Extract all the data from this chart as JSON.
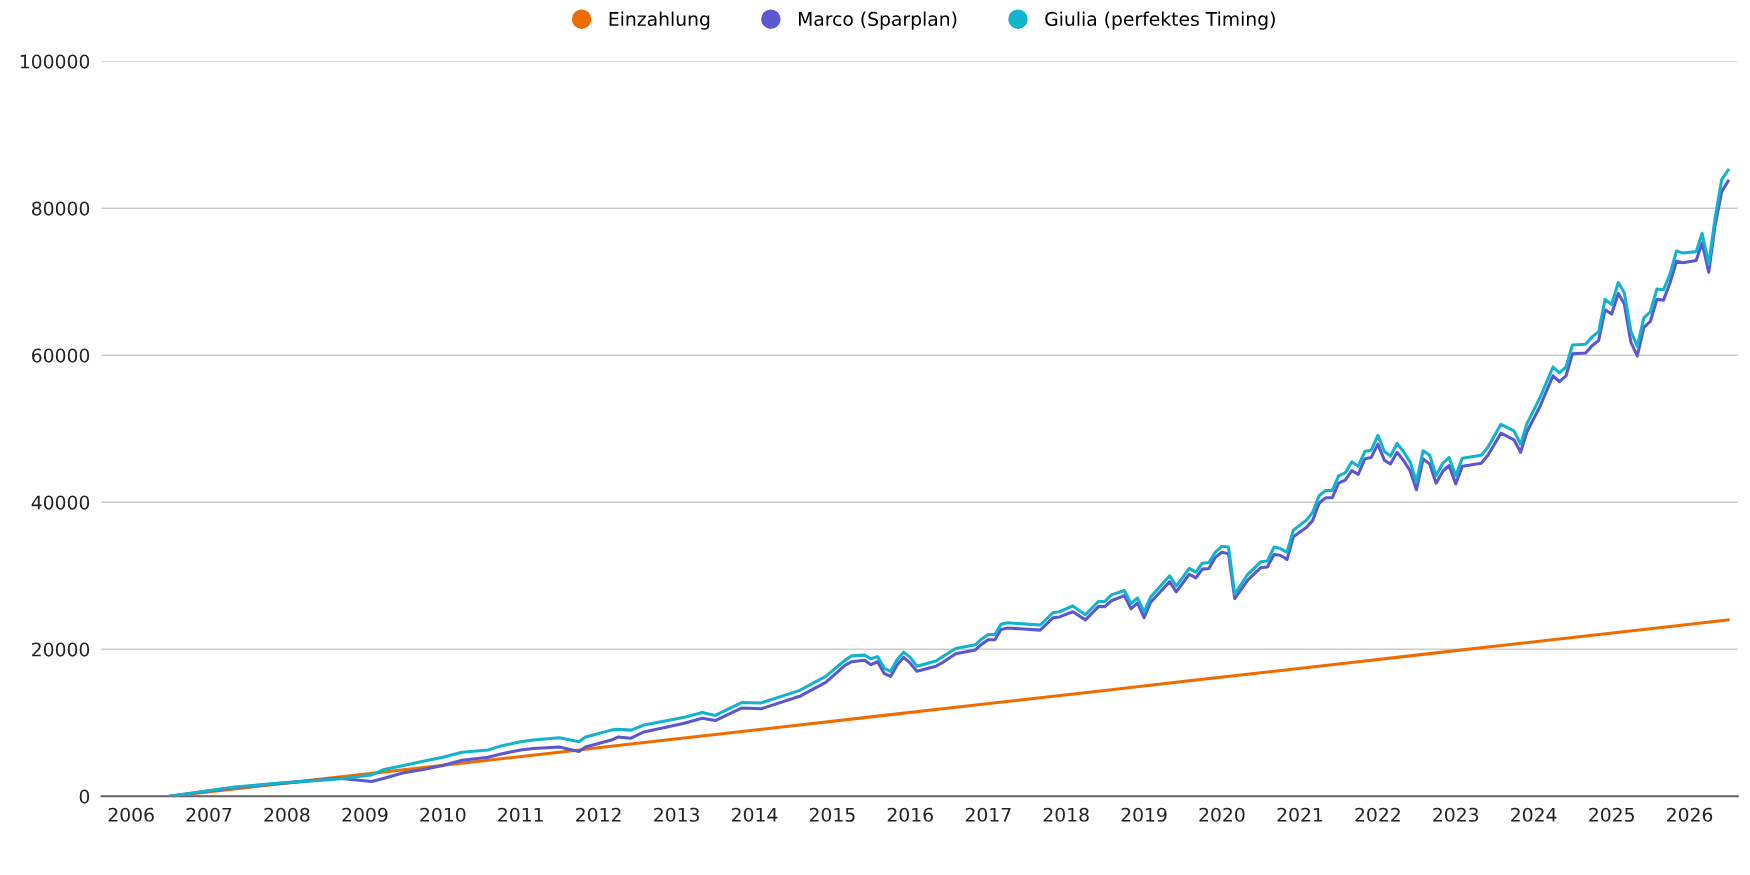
{
  "chart_data": {
    "type": "line",
    "legend": "top",
    "grid": "y",
    "marker": "none",
    "line_style": "solid",
    "xlim": [
      "2005-08-15",
      "2026-08-15"
    ],
    "xticks": [
      {
        "value": "2006-01-01",
        "label": "2006"
      },
      {
        "value": "2007-01-01",
        "label": "2007"
      },
      {
        "value": "2008-01-01",
        "label": "2008"
      },
      {
        "value": "2009-01-01",
        "label": "2009"
      },
      {
        "value": "2010-01-01",
        "label": "2010"
      },
      {
        "value": "2011-01-01",
        "label": "2011"
      },
      {
        "value": "2012-01-01",
        "label": "2012"
      },
      {
        "value": "2013-01-01",
        "label": "2013"
      },
      {
        "value": "2014-01-01",
        "label": "2014"
      },
      {
        "value": "2015-01-01",
        "label": "2015"
      },
      {
        "value": "2016-01-01",
        "label": "2016"
      },
      {
        "value": "2017-01-01",
        "label": "2017"
      },
      {
        "value": "2018-01-01",
        "label": "2018"
      },
      {
        "value": "2019-01-01",
        "label": "2019"
      },
      {
        "value": "2020-01-01",
        "label": "2020"
      },
      {
        "value": "2021-01-01",
        "label": "2021"
      },
      {
        "value": "2022-01-01",
        "label": "2022"
      },
      {
        "value": "2023-01-01",
        "label": "2023"
      },
      {
        "value": "2024-01-01",
        "label": "2024"
      },
      {
        "value": "2025-01-01",
        "label": "2025"
      },
      {
        "value": "2026-01-01",
        "label": "2026"
      }
    ],
    "ylim": [
      0,
      100000
    ],
    "yticks": [
      0,
      20000,
      40000,
      60000,
      80000,
      100000
    ],
    "series": [
      {
        "name": "Einzahlung",
        "color": "#ef6c00",
        "x": [
          "2006-07",
          "2007-07",
          "2008-07",
          "2009-07",
          "2010-07",
          "2011-07",
          "2012-07",
          "2013-07",
          "2014-07",
          "2015-07",
          "2016-07",
          "2017-07",
          "2018-07",
          "2019-07",
          "2020-07",
          "2021-07",
          "2022-07",
          "2023-07",
          "2024-07",
          "2025-07",
          "2026-07"
        ],
        "values": [
          0,
          1200,
          2400,
          3600,
          4800,
          6000,
          7200,
          8400,
          9600,
          10800,
          12000,
          13200,
          14400,
          15600,
          16800,
          18000,
          19200,
          20400,
          21600,
          22800,
          24000
        ]
      },
      {
        "name": "Marco (Sparplan)",
        "color": "#5b57d1",
        "x": [
          "2006-07",
          "2007-05",
          "2007-12",
          "2008-09",
          "2009-02",
          "2009-04",
          "2009-07",
          "2009-10",
          "2010-01",
          "2010-04",
          "2010-08",
          "2010-10",
          "2011-01",
          "2011-03",
          "2011-07",
          "2011-10",
          "2011-11",
          "2012-03",
          "2012-04",
          "2012-06",
          "2012-08",
          "2013-02",
          "2013-05",
          "2013-07",
          "2013-11",
          "2014-02",
          "2014-08",
          "2014-12",
          "2015-03",
          "2015-04",
          "2015-06",
          "2015-07",
          "2015-08",
          "2015-09",
          "2015-10",
          "2015-11",
          "2015-12",
          "2016-01",
          "2016-02",
          "2016-05",
          "2016-06",
          "2016-08",
          "2016-11",
          "2016-12",
          "2017-01",
          "2017-02",
          "2017-03",
          "2017-04",
          "2017-09",
          "2017-11",
          "2017-12",
          "2018-02",
          "2018-04",
          "2018-06",
          "2018-07",
          "2018-08",
          "2018-10",
          "2018-11",
          "2018-12",
          "2019-01",
          "2019-02",
          "2019-05",
          "2019-06",
          "2019-08",
          "2019-09",
          "2019-10",
          "2019-11",
          "2019-12",
          "2020-01",
          "2020-02",
          "2020-03",
          "2020-05",
          "2020-07",
          "2020-08",
          "2020-09",
          "2020-10",
          "2020-11",
          "2020-12",
          "2021-02",
          "2021-03",
          "2021-04",
          "2021-05",
          "2021-06",
          "2021-07",
          "2021-08",
          "2021-09",
          "2021-10",
          "2021-11",
          "2021-12",
          "2022-01",
          "2022-02",
          "2022-03",
          "2022-04",
          "2022-05",
          "2022-06",
          "2022-07",
          "2022-08",
          "2022-09",
          "2022-10",
          "2022-11",
          "2022-12",
          "2023-01",
          "2023-02",
          "2023-05",
          "2023-06",
          "2023-08",
          "2023-10",
          "2023-11",
          "2023-12",
          "2024-02",
          "2024-04",
          "2024-05",
          "2024-06",
          "2024-07",
          "2024-09",
          "2024-10",
          "2024-11",
          "2024-12",
          "2025-01",
          "2025-02",
          "2025-03",
          "2025-04",
          "2025-05",
          "2025-06",
          "2025-07",
          "2025-08",
          "2025-09",
          "2025-10",
          "2025-11",
          "2025-12",
          "2026-02",
          "2026-03",
          "2026-04",
          "2026-05",
          "2026-06",
          "2026-07"
        ],
        "values": [
          0,
          1200,
          1750,
          2450,
          2000,
          2450,
          3200,
          3650,
          4200,
          4900,
          5300,
          5750,
          6300,
          6500,
          6700,
          6100,
          6700,
          7650,
          8050,
          7900,
          8750,
          9900,
          10600,
          10300,
          12000,
          11900,
          13600,
          15500,
          17800,
          18300,
          18500,
          17900,
          18300,
          16700,
          16300,
          17900,
          18900,
          18100,
          17000,
          17700,
          18200,
          19400,
          19900,
          20700,
          21300,
          21300,
          22700,
          22900,
          22600,
          24300,
          24400,
          25100,
          24000,
          25800,
          25800,
          26600,
          27300,
          25500,
          26300,
          24300,
          26400,
          29200,
          27800,
          30200,
          29700,
          30900,
          31000,
          32500,
          33200,
          33000,
          26900,
          29400,
          31100,
          31200,
          32900,
          32800,
          32200,
          35300,
          36600,
          37500,
          39900,
          40600,
          40600,
          42600,
          43000,
          44300,
          43800,
          45900,
          46100,
          47900,
          45700,
          45200,
          46800,
          45700,
          44300,
          41700,
          45900,
          45200,
          42600,
          44200,
          45000,
          42500,
          44900,
          45300,
          46400,
          49400,
          48500,
          46800,
          49600,
          53100,
          57200,
          56400,
          57200,
          60200,
          60300,
          61300,
          62000,
          66200,
          65600,
          68400,
          67000,
          61800,
          59900,
          63800,
          64600,
          67600,
          67500,
          69800,
          72800,
          72600,
          72900,
          75300,
          71300,
          77700,
          82300,
          83700
        ]
      },
      {
        "name": "Giulia (perfektes Timing)",
        "color": "#12b3cc",
        "x": [
          "2006-07",
          "2007-05",
          "2007-12",
          "2008-09",
          "2009-02",
          "2009-04",
          "2009-07",
          "2009-10",
          "2010-01",
          "2010-04",
          "2010-08",
          "2010-10",
          "2011-01",
          "2011-03",
          "2011-07",
          "2011-10",
          "2011-11",
          "2012-03",
          "2012-04",
          "2012-06",
          "2012-08",
          "2013-02",
          "2013-05",
          "2013-07",
          "2013-11",
          "2014-02",
          "2014-08",
          "2014-12",
          "2015-03",
          "2015-04",
          "2015-06",
          "2015-07",
          "2015-08",
          "2015-09",
          "2015-10",
          "2015-11",
          "2015-12",
          "2016-01",
          "2016-02",
          "2016-05",
          "2016-06",
          "2016-08",
          "2016-11",
          "2016-12",
          "2017-01",
          "2017-02",
          "2017-03",
          "2017-04",
          "2017-09",
          "2017-11",
          "2017-12",
          "2018-02",
          "2018-04",
          "2018-06",
          "2018-07",
          "2018-08",
          "2018-10",
          "2018-11",
          "2018-12",
          "2019-01",
          "2019-02",
          "2019-05",
          "2019-06",
          "2019-08",
          "2019-09",
          "2019-10",
          "2019-11",
          "2019-12",
          "2020-01",
          "2020-02",
          "2020-03",
          "2020-05",
          "2020-07",
          "2020-08",
          "2020-09",
          "2020-10",
          "2020-11",
          "2020-12",
          "2021-02",
          "2021-03",
          "2021-04",
          "2021-05",
          "2021-06",
          "2021-07",
          "2021-08",
          "2021-09",
          "2021-10",
          "2021-11",
          "2021-12",
          "2022-01",
          "2022-02",
          "2022-03",
          "2022-04",
          "2022-05",
          "2022-06",
          "2022-07",
          "2022-08",
          "2022-09",
          "2022-10",
          "2022-11",
          "2022-12",
          "2023-01",
          "2023-02",
          "2023-05",
          "2023-06",
          "2023-08",
          "2023-10",
          "2023-11",
          "2023-12",
          "2024-02",
          "2024-04",
          "2024-05",
          "2024-06",
          "2024-07",
          "2024-09",
          "2024-10",
          "2024-11",
          "2024-12",
          "2025-01",
          "2025-02",
          "2025-03",
          "2025-04",
          "2025-05",
          "2025-06",
          "2025-07",
          "2025-08",
          "2025-09",
          "2025-10",
          "2025-11",
          "2025-12",
          "2026-02",
          "2026-03",
          "2026-04",
          "2026-05",
          "2026-06",
          "2026-07"
        ],
        "values": [
          0,
          1250,
          1800,
          2350,
          2900,
          3650,
          4200,
          4750,
          5300,
          6000,
          6300,
          6850,
          7400,
          7650,
          7950,
          7400,
          8050,
          9000,
          9100,
          9000,
          9700,
          10700,
          11400,
          11000,
          12750,
          12700,
          14400,
          16300,
          18500,
          19100,
          19200,
          18700,
          19000,
          17400,
          17000,
          18600,
          19600,
          18900,
          17700,
          18400,
          19000,
          20100,
          20600,
          21400,
          22000,
          22000,
          23400,
          23600,
          23300,
          25000,
          25100,
          25900,
          24700,
          26500,
          26500,
          27400,
          28000,
          26200,
          27000,
          25100,
          27100,
          30000,
          28600,
          31000,
          30500,
          31700,
          31800,
          33200,
          34000,
          33900,
          27500,
          30200,
          31900,
          32000,
          33900,
          33700,
          33200,
          36200,
          37600,
          38600,
          40900,
          41600,
          41600,
          43600,
          44000,
          45500,
          44900,
          46900,
          47100,
          49100,
          46900,
          46300,
          48000,
          46900,
          45500,
          42800,
          47000,
          46400,
          43600,
          45300,
          46100,
          43600,
          46000,
          46400,
          47500,
          50600,
          49700,
          47900,
          50700,
          54300,
          58400,
          57600,
          58400,
          61400,
          61500,
          62500,
          63200,
          67600,
          66900,
          69900,
          68500,
          63300,
          61200,
          65100,
          65900,
          69000,
          68900,
          71000,
          74200,
          73900,
          74100,
          76600,
          72400,
          78700,
          83900,
          85200
        ]
      }
    ]
  }
}
